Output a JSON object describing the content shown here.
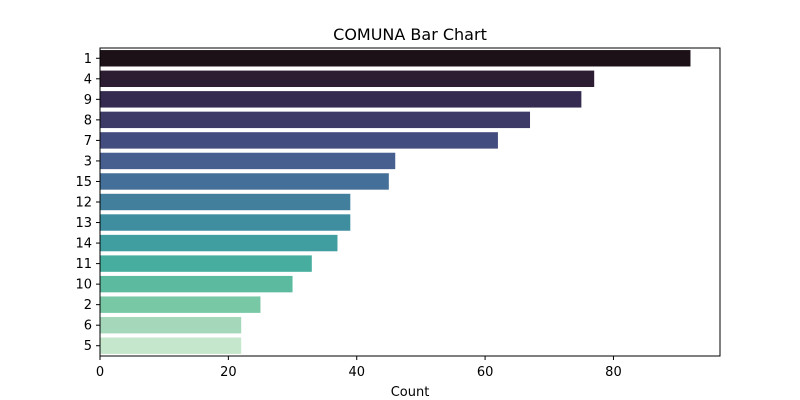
{
  "chart_data": {
    "type": "bar",
    "orientation": "horizontal",
    "title": "COMUNA Bar Chart",
    "xlabel": "Count",
    "ylabel": "",
    "categories": [
      "1",
      "4",
      "9",
      "8",
      "7",
      "3",
      "15",
      "12",
      "13",
      "14",
      "11",
      "10",
      "2",
      "6",
      "5"
    ],
    "values": [
      92,
      77,
      75,
      67,
      62,
      46,
      45,
      39,
      39,
      37,
      33,
      30,
      25,
      22,
      22
    ],
    "colors": [
      "#1b1117",
      "#2c1d32",
      "#352a4f",
      "#3e3a68",
      "#434c7f",
      "#465f8f",
      "#446f98",
      "#427f9d",
      "#3e8ea0",
      "#419ea0",
      "#47ad9e",
      "#5cba9f",
      "#78c7a5",
      "#a5d8bb",
      "#c5e8cd"
    ],
    "xlim": [
      0,
      96.6
    ],
    "xticks": [
      0,
      20,
      40,
      60,
      80
    ],
    "grid": false,
    "legend": "none"
  }
}
